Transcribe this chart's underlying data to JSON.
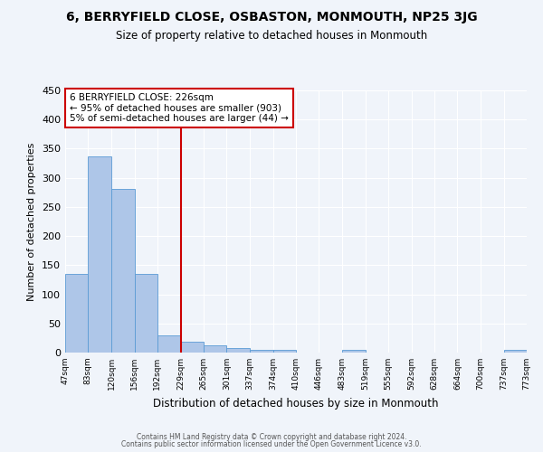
{
  "title": "6, BERRYFIELD CLOSE, OSBASTON, MONMOUTH, NP25 3JG",
  "subtitle": "Size of property relative to detached houses in Monmouth",
  "xlabel": "Distribution of detached houses by size in Monmouth",
  "ylabel": "Number of detached properties",
  "bar_color": "#aec6e8",
  "bar_edge_color": "#5b9bd5",
  "background_color": "#f0f4fa",
  "grid_color": "#ffffff",
  "vline_x": 229,
  "vline_color": "#cc0000",
  "annotation_line1": "6 BERRYFIELD CLOSE: 226sqm",
  "annotation_line2": "← 95% of detached houses are smaller (903)",
  "annotation_line3": "5% of semi-detached houses are larger (44) →",
  "annotation_box_color": "#ffffff",
  "annotation_box_edge": "#cc0000",
  "bin_edges": [
    47,
    83,
    120,
    156,
    192,
    229,
    265,
    301,
    337,
    374,
    410,
    446,
    483,
    519,
    555,
    592,
    628,
    664,
    700,
    737,
    773
  ],
  "bar_heights": [
    135,
    337,
    281,
    135,
    30,
    19,
    12,
    7,
    5,
    4,
    0,
    0,
    4,
    0,
    0,
    0,
    0,
    0,
    0,
    4
  ],
  "ylim": [
    0,
    450
  ],
  "yticks": [
    0,
    50,
    100,
    150,
    200,
    250,
    300,
    350,
    400,
    450
  ],
  "footer1": "Contains HM Land Registry data © Crown copyright and database right 2024.",
  "footer2": "Contains public sector information licensed under the Open Government Licence v3.0."
}
